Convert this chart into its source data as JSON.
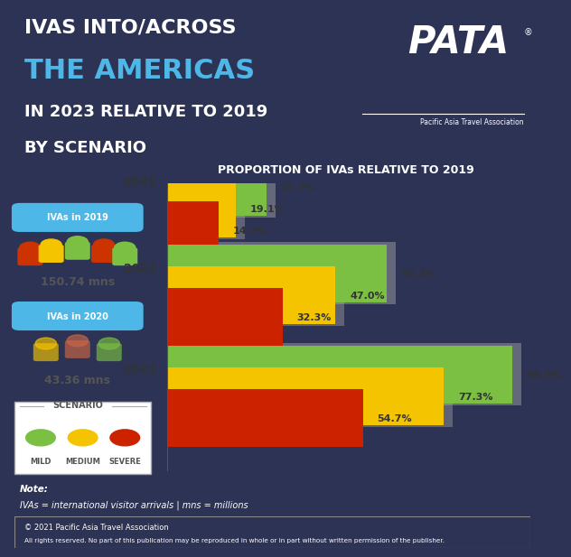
{
  "title_line1": "IVAS INTO/ACROSS",
  "title_line2": "THE AMERICAS",
  "title_line3": "IN 2023 RELATIVE TO 2019",
  "title_line4": "BY SCENARIO",
  "bg_dark": "#2d3354",
  "bg_light": "#eef2f5",
  "header_color": "#4db8e8",
  "bar_chart_title": "PROPORTION OF IVAs RELATIVE TO 2019",
  "years": [
    "2021",
    "2022",
    "2023"
  ],
  "mild_values": [
    27.7,
    61.3,
    96.5
  ],
  "medium_values": [
    19.1,
    47.0,
    77.3
  ],
  "severe_values": [
    14.3,
    32.3,
    54.7
  ],
  "mild_color": "#7bc043",
  "medium_color": "#f5c400",
  "severe_color": "#cc2200",
  "shadow_color": "#aaaaaa",
  "ivas_2019_label": "IVAs in 2019",
  "ivas_2019_value": "150.74 mns",
  "ivas_2020_label": "IVAs in 2020",
  "ivas_2020_value": "43.36 mns",
  "scenario_label": "SCENARIO",
  "scenario_mild": "MILD",
  "scenario_medium": "MEDIUM",
  "scenario_severe": "SEVERE",
  "note_bold": "Note:",
  "note_text": "IVAs = international visitor arrivals | mns = millions",
  "copyright_text": "© 2021 Pacific Asia Travel Association",
  "copyright_text2": "All rights reserved. No part of this publication may be reproduced in whole or in part without written permission of the publisher.",
  "pata_text": "PATA",
  "pata_sub": "Pacific Asia Travel Association"
}
